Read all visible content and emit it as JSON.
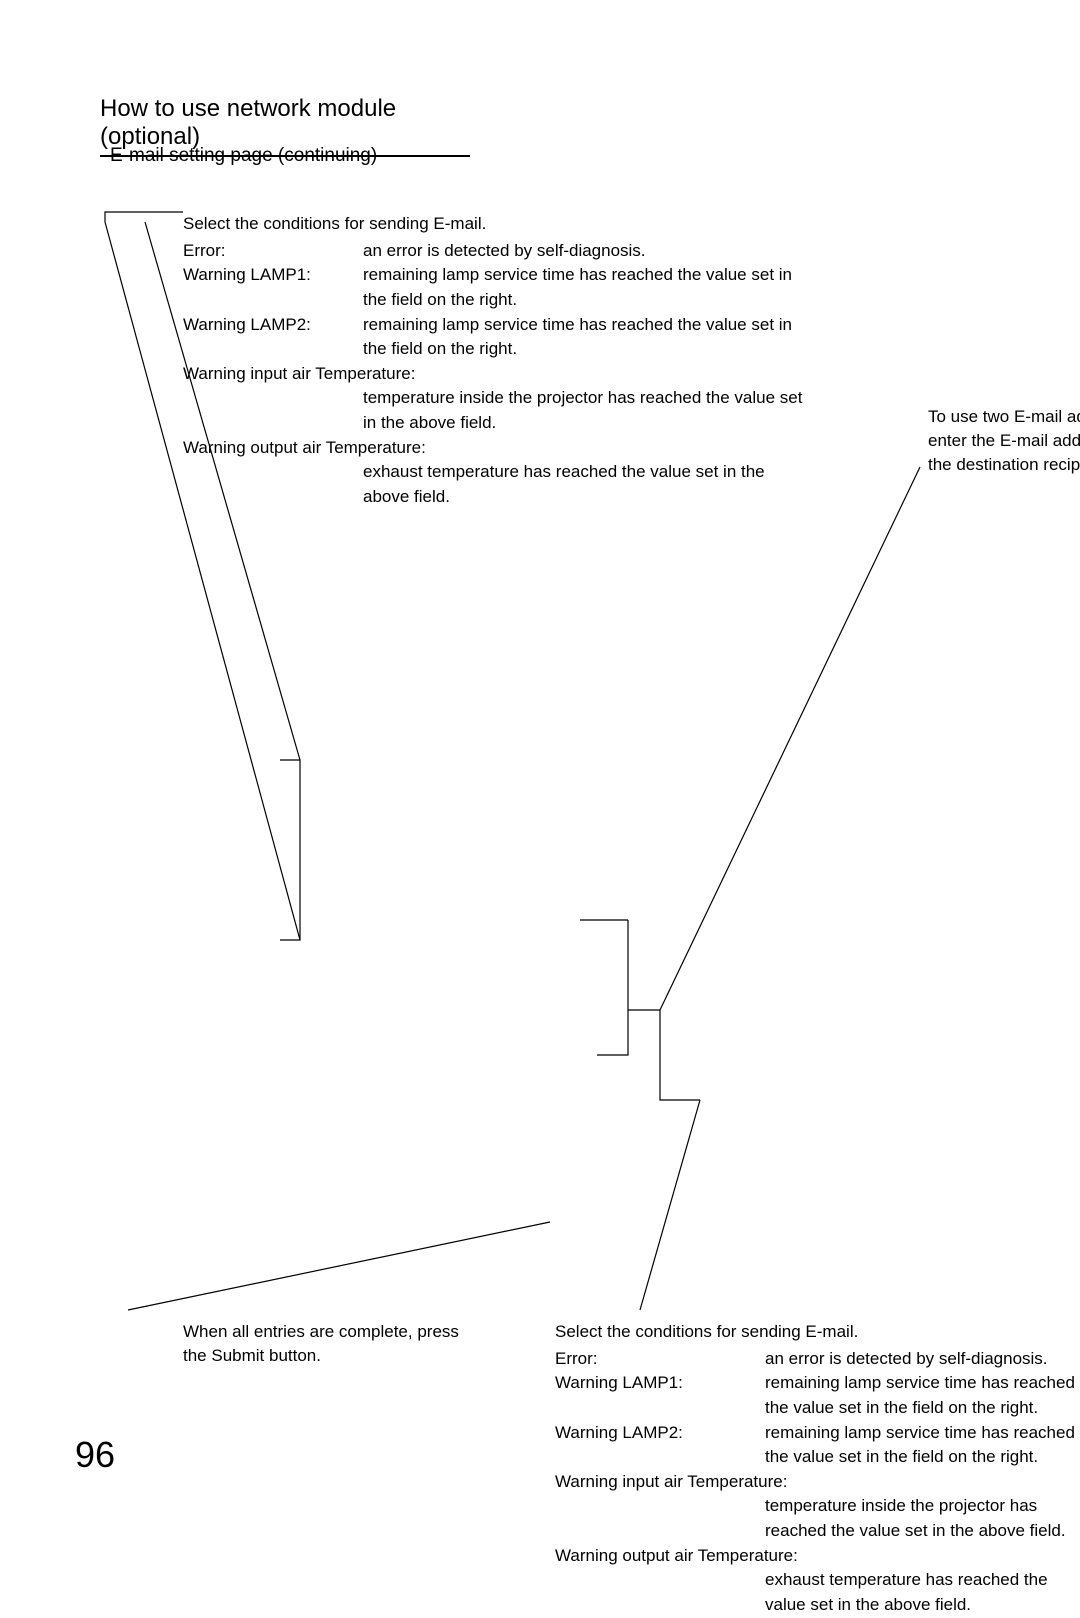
{
  "page": {
    "title": "How to use network module (optional)",
    "subtitle": "E-mail setting page (continuing)",
    "page_number": "96"
  },
  "block1": {
    "intro": "Select the conditions for sending E-mail.",
    "items": [
      {
        "label": "Error:",
        "desc": "an error is detected by self-diagnosis."
      },
      {
        "label": "Warning LAMP1:",
        "desc": "remaining lamp service time has reached the value set in the field on the right."
      },
      {
        "label": "Warning LAMP2:",
        "desc": "remaining lamp service time has reached the value set in the field on the right."
      }
    ],
    "full_items": [
      {
        "label": "Warning input air Temperature:",
        "desc": "temperature inside the projector has reached the value set in the above field."
      },
      {
        "label": "Warning output air Temperature:",
        "desc": "exhaust temperature has reached the value set in the above field."
      }
    ]
  },
  "block2": {
    "text": "To use two E-mail addresses, enter the E-mail address of the destination recipient."
  },
  "block3": {
    "text": "When all entries are complete, press the Submit button."
  },
  "block4": {
    "intro": "Select the conditions for sending E-mail.",
    "items": [
      {
        "label": "Error:",
        "desc": "an error is detected by self-diagnosis."
      },
      {
        "label": "Warning LAMP1:",
        "desc": "remaining lamp service time has reached the value set in the field on the right."
      },
      {
        "label": "Warning LAMP2:",
        "desc": "remaining lamp service time has reached the value set in the field on the right."
      }
    ],
    "full_items": [
      {
        "label": "Warning input air Temperature:",
        "desc": "temperature inside the projector has reached the value set in the above field."
      },
      {
        "label": "Warning output air Temperature:",
        "desc": "exhaust temperature has reached the value set in the above field."
      }
    ]
  },
  "lines": {
    "stroke": "#000000",
    "stroke_width": 1.2,
    "paths": [
      "M 105 222 L 105 212 L 183 212",
      "M 105 222 L 300 940",
      "M 145 222 L 300 760",
      "M 280 760 L 300 760 L 300 940 L 280 940",
      "M 920 467 L 660 1010",
      "M 580 920 L 628 920",
      "M 628 1010 L 660 1010 L 660 1100 L 700 1100",
      "M 700 1100 L 640 1310",
      "M 128 1310 L 550 1222",
      "M 597 1055 L 628 1055 L 628 920"
    ]
  }
}
